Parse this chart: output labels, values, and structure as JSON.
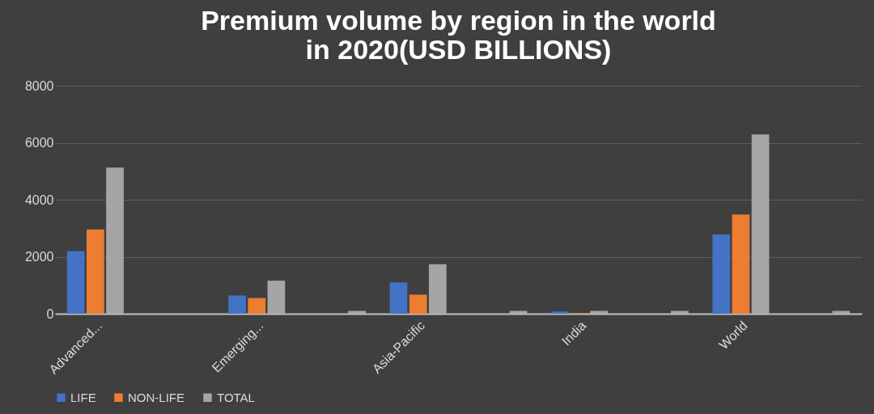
{
  "chart_data": {
    "type": "bar",
    "title": "Premium volume by region in the world\nin 2020(USD BILLIONS)",
    "categories": [
      "Advanced...",
      null,
      "Emerging...",
      null,
      "Asia-Pacific",
      null,
      "India",
      null,
      "World",
      null
    ],
    "series": [
      {
        "name": "LIFE",
        "color": "#4472c4",
        "values": [
          2200,
          0,
          640,
          0,
          1100,
          0,
          80,
          0,
          2780,
          0
        ]
      },
      {
        "name": "NON-LIFE",
        "color": "#ed7d31",
        "values": [
          2960,
          0,
          550,
          0,
          670,
          0,
          20,
          0,
          3480,
          0
        ]
      },
      {
        "name": "TOTAL",
        "color": "#a5a5a5",
        "values": [
          5130,
          0,
          1160,
          100,
          1740,
          100,
          100,
          100,
          6290,
          100
        ]
      }
    ],
    "ylim": [
      0,
      8000
    ],
    "yticks": [
      0,
      2000,
      4000,
      6000,
      8000
    ],
    "grid": "y",
    "legend": "bottom"
  }
}
